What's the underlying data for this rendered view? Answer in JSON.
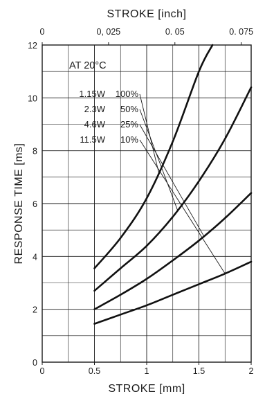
{
  "chart_data": {
    "type": "line",
    "title": "",
    "top_axis_label": "STROKE [inch]",
    "top_axis_ticks": [
      "0",
      "0, 025",
      "0. 05",
      "0. 075"
    ],
    "top_axis_values": [
      0,
      0.025,
      0.05,
      0.075
    ],
    "xlabel": "STROKE [mm]",
    "ylabel": "RESPONSE TIME [ms]",
    "xlim": [
      0,
      2
    ],
    "ylim": [
      0,
      12
    ],
    "xticks": [
      0,
      0.5,
      1,
      1.5,
      2
    ],
    "xtick_labels": [
      "0",
      "0.5",
      "1",
      "1.5",
      "2"
    ],
    "yticks": [
      0,
      2,
      4,
      6,
      8,
      10,
      12
    ],
    "ytick_labels": [
      "0",
      "2",
      "4",
      "6",
      "8",
      "10",
      "12"
    ],
    "grid": true,
    "condition_label": "AT 20°C",
    "series": [
      {
        "name": "1.15W 100%",
        "power": "1.15W",
        "duty": "100%",
        "x": [
          0.5,
          0.75,
          1.0,
          1.25,
          1.5,
          1.63
        ],
        "y": [
          3.55,
          4.7,
          6.2,
          8.35,
          11.0,
          12.0
        ]
      },
      {
        "name": "2.3W 50%",
        "power": "2.3W",
        "duty": "50%",
        "x": [
          0.5,
          0.75,
          1.0,
          1.25,
          1.5,
          1.75,
          2.0
        ],
        "y": [
          2.7,
          3.55,
          4.4,
          5.5,
          6.85,
          8.45,
          10.4
        ]
      },
      {
        "name": "4.6W 25%",
        "power": "4.6W",
        "duty": "25%",
        "x": [
          0.5,
          0.75,
          1.0,
          1.25,
          1.5,
          1.75,
          2.0
        ],
        "y": [
          2.0,
          2.55,
          3.15,
          3.85,
          4.6,
          5.45,
          6.4
        ]
      },
      {
        "name": "11.5W 10%",
        "power": "11.5W",
        "duty": "10%",
        "x": [
          0.5,
          0.75,
          1.0,
          1.25,
          1.5,
          1.75,
          2.0
        ],
        "y": [
          1.45,
          1.8,
          2.15,
          2.55,
          2.95,
          3.35,
          3.8
        ]
      }
    ],
    "leader_targets": [
      {
        "series": "1.15W 100%",
        "x": 1.12,
        "y": 7.1
      },
      {
        "series": "2.3W 50%",
        "x": 1.3,
        "y": 5.7
      },
      {
        "series": "4.6W 25%",
        "x": 1.55,
        "y": 4.75
      },
      {
        "series": "11.5W 10%",
        "x": 1.75,
        "y": 3.35
      }
    ]
  }
}
